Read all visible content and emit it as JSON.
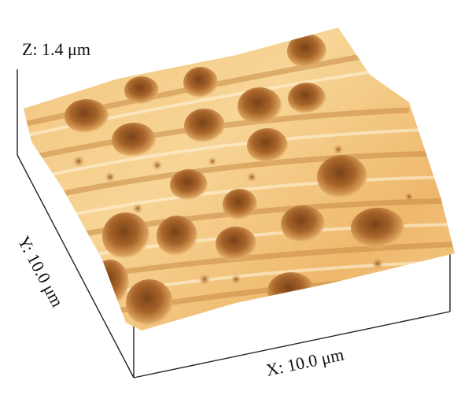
{
  "labels": {
    "z": "Z: 1.4 μm",
    "y": "Y: 10.0 μm",
    "x": "X: 10.0 μm"
  }
}
